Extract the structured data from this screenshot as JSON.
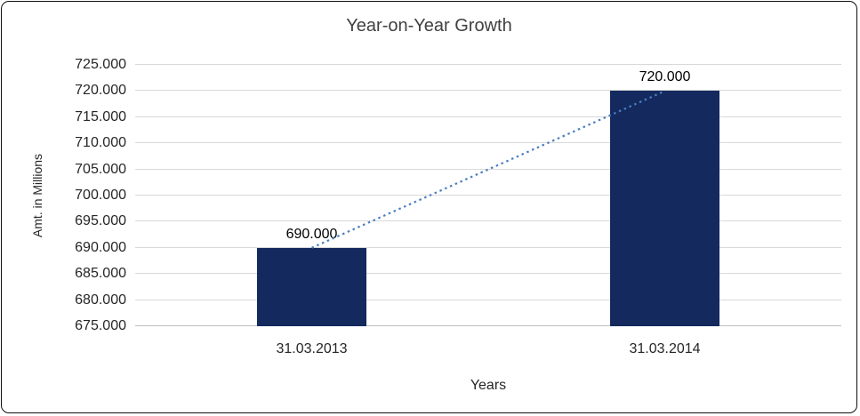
{
  "chart_data": {
    "type": "bar",
    "title": "Year-on-Year Growth",
    "xlabel": "Years",
    "ylabel": "Amt. in Millions",
    "categories": [
      "31.03.2013",
      "31.03.2014"
    ],
    "values": [
      690000,
      720000
    ],
    "value_labels": [
      "690.000",
      "720.000"
    ],
    "ylim": [
      675000,
      725000
    ],
    "yticks": [
      675000,
      680000,
      685000,
      690000,
      695000,
      700000,
      705000,
      710000,
      715000,
      720000,
      725000
    ],
    "ytick_labels": [
      "675.000",
      "680.000",
      "685.000",
      "690.000",
      "695.000",
      "700.000",
      "705.000",
      "710.000",
      "715.000",
      "720.000",
      "725.000"
    ],
    "grid": true,
    "legend": "none",
    "trendline": {
      "style": "dotted",
      "connects": [
        "31.03.2013",
        "31.03.2014"
      ]
    },
    "colors": {
      "bar": "#14295e",
      "trendline": "#4a7ec0",
      "gridline": "#d9d9d9",
      "axis_line": "#bfbfbf",
      "title_text": "#404040",
      "axis_text": "#262626"
    }
  }
}
